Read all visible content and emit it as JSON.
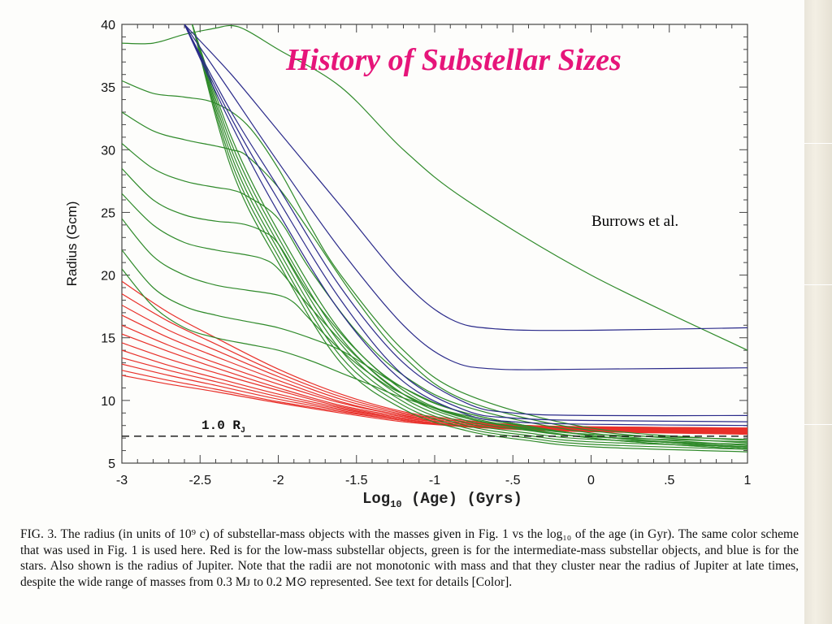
{
  "slide": {
    "title": "History of Substellar Sizes",
    "credit": "Burrows et al."
  },
  "chart_data": {
    "type": "line",
    "xlabel_main": "Log",
    "xlabel_sub": "10",
    "xlabel_rest": " (Age) (Gyrs)",
    "ylabel": "Radius (Gcm)",
    "xlim": [
      -3,
      1
    ],
    "ylim": [
      5,
      40
    ],
    "x_ticks": [
      {
        "v": -3,
        "label": "-3"
      },
      {
        "v": -2.5,
        "label": "-2.5"
      },
      {
        "v": -2,
        "label": "-2"
      },
      {
        "v": -1.5,
        "label": "-1.5"
      },
      {
        "v": -1,
        "label": "-1"
      },
      {
        "v": -0.5,
        "label": "-.5"
      },
      {
        "v": 0,
        "label": "0"
      },
      {
        "v": 0.5,
        "label": ".5"
      },
      {
        "v": 1,
        "label": "1"
      }
    ],
    "y_ticks": [
      {
        "v": 5,
        "label": "5"
      },
      {
        "v": 10,
        "label": "10"
      },
      {
        "v": 15,
        "label": "15"
      },
      {
        "v": 20,
        "label": "20"
      },
      {
        "v": 25,
        "label": "25"
      },
      {
        "v": 30,
        "label": "30"
      },
      {
        "v": 35,
        "label": "35"
      },
      {
        "v": 40,
        "label": "40"
      }
    ],
    "jupiter_radius": 7.15,
    "jupiter_label_main": "1.0 R",
    "jupiter_label_sub": "J",
    "colors": {
      "low_mass": "#e8302a",
      "intermediate_mass": "#2f8a2a",
      "stars": "#2a2a8a",
      "jupiter": "#222222"
    },
    "series": [
      {
        "group": "blue",
        "x": [
          -2.6,
          -2.3,
          -2.0,
          -1.6,
          -1.2,
          -0.9,
          -0.6,
          0,
          1
        ],
        "y": [
          40,
          36,
          31.5,
          25.5,
          19.5,
          16.5,
          15.7,
          15.6,
          15.8
        ]
      },
      {
        "group": "blue",
        "x": [
          -2.6,
          -2.3,
          -2.0,
          -1.6,
          -1.2,
          -0.9,
          -0.6,
          0,
          1
        ],
        "y": [
          40,
          34.5,
          29,
          22,
          16,
          13.2,
          12.5,
          12.5,
          12.6
        ]
      },
      {
        "group": "blue",
        "x": [
          -2.6,
          -2.3,
          -2.0,
          -1.6,
          -1.2,
          -0.8,
          -0.5,
          0,
          1
        ],
        "y": [
          40,
          33,
          27,
          19,
          13,
          9.8,
          9,
          8.8,
          8.8
        ]
      },
      {
        "group": "blue",
        "x": [
          -2.6,
          -2.3,
          -2.0,
          -1.6,
          -1.2,
          -0.8,
          -0.5,
          0,
          1
        ],
        "y": [
          40,
          32.5,
          26,
          18,
          12,
          9.2,
          8.6,
          8.4,
          8.3
        ]
      },
      {
        "group": "blue",
        "x": [
          -2.6,
          -2.3,
          -2.0,
          -1.6,
          -1.2,
          -0.8,
          -0.5,
          0,
          1
        ],
        "y": [
          40,
          32,
          25,
          17,
          11.5,
          8.9,
          8.3,
          8.1,
          8.0
        ]
      },
      {
        "group": "green",
        "x": [
          -2.55,
          -2.3,
          -2.0,
          -1.6,
          -1.2,
          -0.8,
          -0.4,
          0,
          1
        ],
        "y": [
          40,
          31,
          23.5,
          15.5,
          10.8,
          8.6,
          7.8,
          7.3,
          6.9
        ]
      },
      {
        "group": "green",
        "x": [
          -2.55,
          -2.3,
          -2.0,
          -1.6,
          -1.2,
          -0.8,
          -0.4,
          0,
          1
        ],
        "y": [
          40,
          30.5,
          23,
          15,
          10.5,
          8.4,
          7.6,
          7.1,
          6.7
        ]
      },
      {
        "group": "green",
        "x": [
          -2.55,
          -2.3,
          -2.0,
          -1.6,
          -1.2,
          -0.8,
          -0.4,
          0,
          1
        ],
        "y": [
          40,
          30,
          22.5,
          14.5,
          10.2,
          8.2,
          7.4,
          6.9,
          6.5
        ]
      },
      {
        "group": "green",
        "x": [
          -2.55,
          -2.3,
          -2.0,
          -1.6,
          -1.2,
          -0.8,
          -0.4,
          0,
          1
        ],
        "y": [
          40,
          29.5,
          22,
          14,
          9.9,
          8.0,
          7.2,
          6.7,
          6.3
        ]
      },
      {
        "group": "green",
        "x": [
          -2.55,
          -2.3,
          -2.0,
          -1.6,
          -1.2,
          -0.8,
          -0.4,
          0,
          1
        ],
        "y": [
          40,
          29,
          21.5,
          13.5,
          9.6,
          7.8,
          7.0,
          6.5,
          6.1
        ]
      },
      {
        "group": "green",
        "x": [
          -2.55,
          -2.3,
          -2.0,
          -1.6,
          -1.2,
          -0.8,
          -0.4,
          0,
          1
        ],
        "y": [
          40,
          28.5,
          21,
          13,
          9.3,
          7.6,
          6.8,
          6.3,
          5.9
        ]
      },
      {
        "group": "green",
        "x": [
          -3,
          -2.8,
          -2.6,
          -2.4,
          -2.3,
          -2.2,
          -2.0,
          -1.6,
          -1.2,
          -0.8,
          0,
          1
        ],
        "y": [
          38.5,
          38.5,
          39.2,
          39.7,
          39.9,
          39.5,
          38,
          35,
          30,
          26,
          20,
          14
        ]
      },
      {
        "group": "green",
        "x": [
          -3,
          -2.8,
          -2.6,
          -2.4,
          -2.2,
          -2.0,
          -1.8,
          -1.6,
          -1.2,
          -0.8,
          0,
          1
        ],
        "y": [
          35.5,
          34.5,
          34.2,
          33.7,
          32,
          28.5,
          24,
          20,
          14,
          10.5,
          7.8,
          6.8
        ]
      },
      {
        "group": "green",
        "x": [
          -3,
          -2.8,
          -2.6,
          -2.4,
          -2.3,
          -2.2,
          -2.0,
          -1.8,
          -1.5,
          -1.2,
          -0.8,
          0,
          1
        ],
        "y": [
          33,
          31.5,
          30.8,
          30.3,
          30,
          29.5,
          27,
          23.5,
          18,
          13.5,
          10,
          7.6,
          6.6
        ]
      },
      {
        "group": "green",
        "x": [
          -3,
          -2.8,
          -2.6,
          -2.4,
          -2.3,
          -2.2,
          -2.0,
          -1.8,
          -1.5,
          -1.2,
          -0.8,
          0,
          1
        ],
        "y": [
          30.5,
          28.5,
          27.5,
          27.0,
          26.8,
          26.3,
          24.5,
          20.5,
          15.5,
          12,
          9.5,
          7.4,
          6.4
        ]
      },
      {
        "group": "green",
        "x": [
          -3,
          -2.8,
          -2.6,
          -2.4,
          -2.3,
          -2.2,
          -2.1,
          -2.0,
          -1.8,
          -1.5,
          -1.2,
          -0.8,
          0,
          1
        ],
        "y": [
          28.5,
          26,
          24.8,
          24.3,
          24.2,
          24,
          23.5,
          22.5,
          18.5,
          14,
          11,
          9,
          7.2,
          6.2
        ]
      },
      {
        "group": "green",
        "x": [
          -3,
          -2.8,
          -2.6,
          -2.4,
          -2.3,
          -2.2,
          -2.1,
          -2.0,
          -1.8,
          -1.5,
          -1.2,
          -0.8,
          0,
          1
        ],
        "y": [
          26.5,
          24,
          22.6,
          22.0,
          21.8,
          21.6,
          21.3,
          20.5,
          17.5,
          13.5,
          10.5,
          8.7,
          7.0,
          6.1
        ]
      },
      {
        "group": "green",
        "x": [
          -3,
          -2.8,
          -2.6,
          -2.4,
          -2.2,
          -2.0,
          -1.9,
          -1.8,
          -1.6,
          -1.4,
          -1.2,
          -0.8,
          0,
          1
        ],
        "y": [
          24.5,
          21.5,
          20,
          19.2,
          18.8,
          18.4,
          17.8,
          16.5,
          14,
          12,
          10.5,
          8.6,
          7.0,
          6.1
        ]
      },
      {
        "group": "green",
        "x": [
          -3,
          -2.8,
          -2.6,
          -2.4,
          -2.2,
          -2.0,
          -1.8,
          -1.6,
          -1.4,
          -1.2,
          -0.8,
          0,
          1
        ],
        "y": [
          22,
          19,
          17.5,
          16.8,
          16.3,
          15.8,
          15,
          14,
          12.5,
          11,
          9,
          7.2,
          6.2
        ]
      },
      {
        "group": "green",
        "x": [
          -3,
          -2.8,
          -2.6,
          -2.4,
          -2.2,
          -2.0,
          -1.8,
          -1.6,
          -1.4,
          -1.2,
          -0.8,
          0,
          1
        ],
        "y": [
          20.5,
          17.5,
          15.8,
          15.0,
          14.5,
          14.0,
          13.2,
          12.2,
          11.2,
          10.2,
          8.8,
          7.2,
          6.3
        ]
      },
      {
        "group": "red",
        "x": [
          -3,
          -2.7,
          -2.4,
          -2.0,
          -1.6,
          -1.2,
          -0.8,
          -0.4,
          0,
          1
        ],
        "y": [
          19.5,
          17,
          15,
          12.5,
          10.5,
          9.1,
          8.4,
          8.0,
          7.9,
          7.8
        ]
      },
      {
        "group": "red",
        "x": [
          -3,
          -2.7,
          -2.4,
          -2.0,
          -1.6,
          -1.2,
          -0.8,
          -0.4,
          0,
          1
        ],
        "y": [
          18.5,
          16.3,
          14.5,
          12.2,
          10.3,
          9.0,
          8.3,
          8.0,
          7.9,
          7.8
        ]
      },
      {
        "group": "red",
        "x": [
          -3,
          -2.7,
          -2.4,
          -2.0,
          -1.6,
          -1.2,
          -0.8,
          -0.4,
          0,
          1
        ],
        "y": [
          17.6,
          15.6,
          14.0,
          11.9,
          10.1,
          8.9,
          8.3,
          7.95,
          7.85,
          7.75
        ]
      },
      {
        "group": "red",
        "x": [
          -3,
          -2.7,
          -2.4,
          -2.0,
          -1.6,
          -1.2,
          -0.8,
          -0.4,
          0,
          1
        ],
        "y": [
          16.8,
          15.0,
          13.5,
          11.6,
          9.9,
          8.8,
          8.2,
          7.9,
          7.8,
          7.7
        ]
      },
      {
        "group": "red",
        "x": [
          -3,
          -2.7,
          -2.4,
          -2.0,
          -1.6,
          -1.2,
          -0.8,
          -0.4,
          0,
          1
        ],
        "y": [
          16.0,
          14.4,
          13.0,
          11.3,
          9.8,
          8.8,
          8.2,
          7.9,
          7.8,
          7.65
        ]
      },
      {
        "group": "red",
        "x": [
          -3,
          -2.7,
          -2.4,
          -2.0,
          -1.6,
          -1.2,
          -0.8,
          -0.4,
          0,
          1
        ],
        "y": [
          15.3,
          13.9,
          12.6,
          11.0,
          9.6,
          8.7,
          8.1,
          7.85,
          7.75,
          7.6
        ]
      },
      {
        "group": "red",
        "x": [
          -3,
          -2.7,
          -2.4,
          -2.0,
          -1.6,
          -1.2,
          -0.8,
          -0.4,
          0,
          1
        ],
        "y": [
          14.6,
          13.3,
          12.2,
          10.8,
          9.5,
          8.6,
          8.1,
          7.8,
          7.7,
          7.55
        ]
      },
      {
        "group": "red",
        "x": [
          -3,
          -2.7,
          -2.4,
          -2.0,
          -1.6,
          -1.2,
          -0.8,
          -0.4,
          0,
          1
        ],
        "y": [
          14.0,
          12.8,
          11.8,
          10.5,
          9.4,
          8.5,
          8.0,
          7.8,
          7.7,
          7.5
        ]
      },
      {
        "group": "red",
        "x": [
          -3,
          -2.7,
          -2.4,
          -2.0,
          -1.6,
          -1.2,
          -0.8,
          -0.4,
          0,
          1
        ],
        "y": [
          13.4,
          12.4,
          11.5,
          10.3,
          9.3,
          8.5,
          8.0,
          7.75,
          7.65,
          7.45
        ]
      },
      {
        "group": "red",
        "x": [
          -3,
          -2.7,
          -2.4,
          -2.0,
          -1.6,
          -1.2,
          -0.8,
          -0.4,
          0,
          1
        ],
        "y": [
          12.9,
          12.0,
          11.2,
          10.1,
          9.2,
          8.4,
          7.95,
          7.7,
          7.6,
          7.4
        ]
      },
      {
        "group": "red",
        "x": [
          -3,
          -2.7,
          -2.4,
          -2.0,
          -1.6,
          -1.2,
          -0.8,
          -0.4,
          0,
          1
        ],
        "y": [
          12.4,
          11.6,
          10.9,
          9.9,
          9.1,
          8.4,
          7.9,
          7.7,
          7.55,
          7.35
        ]
      },
      {
        "group": "red",
        "x": [
          -3,
          -2.7,
          -2.4,
          -2.0,
          -1.6,
          -1.2,
          -0.8,
          -0.4,
          0,
          1
        ],
        "y": [
          12.0,
          11.3,
          10.7,
          9.8,
          9.0,
          8.3,
          7.9,
          7.65,
          7.5,
          7.3
        ]
      }
    ]
  },
  "caption": {
    "text": "FIG. 3. The radius (in units of 10⁹ c) of substellar-mass objects with the masses given in Fig. 1 vs the log₁₀ of the age (in Gyr). The same color scheme that was used in Fig. 1 is used here. Red is for the low-mass substellar objects, green is for the intermediate-mass substellar objects, and blue is for the stars. Also shown is the radius of Jupiter. Note that the radii are not monotonic with mass and that they cluster near the radius of Jupiter at late times, despite the wide range of masses from 0.3 Mᴊ to 0.2 M⊙ represented. See text for details [Color]."
  }
}
